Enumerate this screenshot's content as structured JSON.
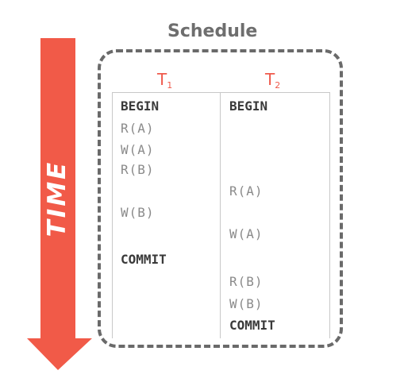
{
  "arrow": {
    "label": "TIME",
    "color": "#f15a48"
  },
  "schedule": {
    "title": "Schedule",
    "transactions": [
      {
        "name": "T",
        "subscript": "1",
        "operations": [
          "BEGIN",
          "R(A)",
          "W(A)",
          "R(B)",
          "W(B)",
          "COMMIT"
        ]
      },
      {
        "name": "T",
        "subscript": "2",
        "operations": [
          "BEGIN",
          "R(A)",
          "W(A)",
          "R(B)",
          "W(B)",
          "COMMIT"
        ]
      }
    ]
  },
  "colors": {
    "header": "#ef5a4c",
    "box_border": "#6a6a6a",
    "control_text": "#3a3a3a",
    "rw_text": "#8a8a8a"
  }
}
